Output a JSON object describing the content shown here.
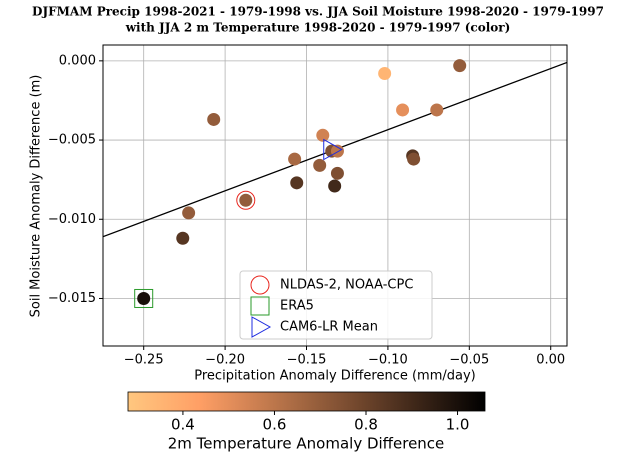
{
  "chart_data": {
    "type": "scatter",
    "title": "DJFMAM Precip 1998-2021 - 1979-1998 vs. JJA Soil Moisture 1998-2020 - 1979-1997",
    "subtitle": "with JJA 2 m Temperature 1998-2020 - 1979-1997 (color)",
    "x_label": "Precipitation Anomaly Difference (mm/day)",
    "y_label": "Soil Moisture Anomaly Difference (m)",
    "xlim": [
      -0.275,
      0.01
    ],
    "ylim": [
      -0.018,
      0.001
    ],
    "xticks": [
      {
        "value": -0.25,
        "label": "−0.25"
      },
      {
        "value": -0.2,
        "label": "−0.20"
      },
      {
        "value": -0.15,
        "label": "−0.15"
      },
      {
        "value": -0.1,
        "label": "−0.10"
      },
      {
        "value": -0.05,
        "label": "−0.05"
      },
      {
        "value": 0,
        "label": "0.00"
      }
    ],
    "yticks": [
      {
        "value": -0.015,
        "label": "−0.015"
      },
      {
        "value": -0.01,
        "label": "−0.010"
      },
      {
        "value": -0.005,
        "label": "−0.005"
      },
      {
        "value": 0,
        "label": "0.000"
      }
    ],
    "grid": true,
    "colormap": "copper_r",
    "series": [
      {
        "x": [
          -0.25,
          -0.226,
          -0.2224,
          -0.207,
          -0.1873,
          -0.1573,
          -0.156,
          -0.1419,
          -0.14,
          -0.1345,
          -0.131,
          -0.1327,
          -0.131,
          -0.102,
          -0.091,
          -0.0848,
          -0.0842,
          -0.07,
          -0.0559
        ],
        "values": [
          -0.015,
          -0.0112,
          -0.0096,
          -0.0037,
          -0.0088,
          -0.0062,
          -0.0077,
          -0.0066,
          -0.0047,
          -0.0057,
          -0.0057,
          -0.0079,
          -0.0071,
          -0.0008,
          -0.0031,
          -0.006,
          -0.0062,
          -0.0031,
          -0.0003
        ],
        "color_values": [
          1.0,
          0.85,
          0.7,
          0.7,
          0.7,
          0.65,
          0.85,
          0.7,
          0.55,
          0.75,
          0.6,
          0.9,
          0.75,
          0.35,
          0.5,
          0.85,
          0.75,
          0.6,
          0.7
        ]
      }
    ],
    "fit_line": {
      "x": [
        -0.275,
        0.01
      ],
      "y": [
        -0.0111,
        -0.0001
      ],
      "color": "#000000"
    },
    "markers": [
      {
        "name": "NLDAS-2, NOAA-CPC",
        "x": -0.1873,
        "y": -0.0088,
        "color": "#e8261e",
        "shape": "circle"
      },
      {
        "name": "ERA5",
        "x": -0.25,
        "y": -0.015,
        "color": "#2a9a2a",
        "shape": "square"
      },
      {
        "name": "CAM6-LR Mean",
        "x": -0.1345,
        "y": -0.0056,
        "color": "#1f2de0",
        "shape": "triangle"
      }
    ],
    "colorbar": {
      "label": "2m Temperature Anomaly Difference",
      "clim": [
        0.28,
        1.06
      ],
      "ticks": [
        0.4,
        0.6,
        0.8,
        {
          "value": 1.0,
          "label": "1.0"
        }
      ]
    }
  }
}
